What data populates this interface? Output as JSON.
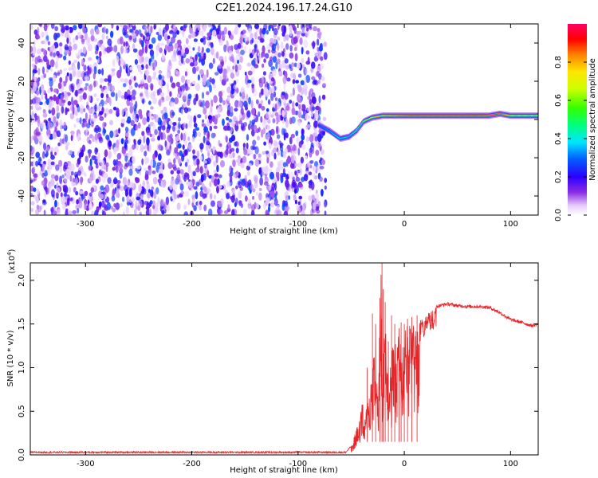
{
  "title": "C2E1.2024.196.17.24.G10",
  "chart_data": [
    {
      "type": "heatmap",
      "xlabel": "Height of straight line (km)",
      "ylabel": "Frequency (Hz)",
      "xlim": [
        -352,
        126
      ],
      "ylim": [
        -50,
        50
      ],
      "x_ticks": [
        -300,
        -200,
        -100,
        0,
        100
      ],
      "x_tick_labels": [
        "-300",
        "-200",
        "-100",
        "0",
        "100"
      ],
      "y_ticks": [
        -40,
        -20,
        0,
        20,
        40
      ],
      "y_tick_labels": [
        "-40",
        "-20",
        "0",
        "20",
        "40"
      ],
      "noise_region_x": [
        -352,
        -74
      ],
      "signal_track": {
        "x": [
          -80,
          -70,
          -60,
          -52,
          -45,
          -38,
          -30,
          -20,
          -10,
          0,
          20,
          50,
          80,
          90,
          100,
          126
        ],
        "freq": [
          -3,
          -6,
          -10,
          -9,
          -6,
          -1,
          1,
          2,
          2,
          2,
          2,
          2,
          2,
          3,
          2,
          2
        ],
        "amplitude": [
          0.3,
          0.35,
          0.45,
          0.4,
          0.5,
          0.6,
          0.75,
          0.8,
          0.85,
          0.9,
          0.95,
          0.95,
          0.9,
          0.95,
          0.7,
          0.65
        ]
      },
      "colorbar": {
        "label": "Normalized spectral amplitude",
        "range": [
          0,
          1
        ],
        "ticks": [
          0.0,
          0.2,
          0.4,
          0.6,
          0.8
        ],
        "tick_labels": [
          "0.0",
          "0.2",
          "0.4",
          "0.6",
          "0.8"
        ]
      },
      "grid": false
    },
    {
      "type": "line",
      "xlabel": "Height of straight line (km)",
      "ylabel": "SNR (10 * v/v)",
      "y_multiplier_base": "(x10",
      "y_multiplier_exp": "4",
      "y_multiplier_close": ")",
      "xlim": [
        -352,
        126
      ],
      "ylim": [
        0,
        2.2
      ],
      "x_ticks": [
        -300,
        -200,
        -100,
        0,
        100
      ],
      "x_tick_labels": [
        "-300",
        "-200",
        "-100",
        "0",
        "100"
      ],
      "y_ticks": [
        0.0,
        0.5,
        1.0,
        1.5,
        2.0
      ],
      "y_tick_labels": [
        "0.0",
        "0.5",
        "1.0",
        "1.5",
        "2.0"
      ],
      "color": "#e8262a",
      "series": [
        {
          "x": [
            -352,
            -300,
            -200,
            -100,
            -55,
            -50,
            -45,
            -40,
            -35,
            -30,
            -27,
            -25,
            -22,
            -20,
            -18,
            -15,
            -12,
            -10,
            -8,
            -5,
            -2,
            0,
            5,
            10,
            20,
            30,
            40,
            50,
            60,
            70,
            80,
            90,
            100,
            110,
            120,
            126
          ],
          "y": [
            0.03,
            0.03,
            0.03,
            0.03,
            0.03,
            0.1,
            0.3,
            0.6,
            0.7,
            1.0,
            1.6,
            0.8,
            2.2,
            1.2,
            1.5,
            1.1,
            1.2,
            1.3,
            1.35,
            1.45,
            1.45,
            1.45,
            1.5,
            1.52,
            1.6,
            1.7,
            1.73,
            1.71,
            1.7,
            1.7,
            1.69,
            1.63,
            1.55,
            1.52,
            1.48,
            1.5
          ],
          "spike_tops": [
            [
              -35,
              1.0
            ],
            [
              -30,
              1.62
            ],
            [
              -27,
              1.5
            ],
            [
              -23,
              1.8
            ],
            [
              -21,
              2.2
            ],
            [
              -20,
              1.9
            ],
            [
              -18,
              1.75
            ],
            [
              -15,
              1.3
            ],
            [
              -12,
              1.6
            ],
            [
              -9,
              1.5
            ],
            [
              -5,
              1.45
            ],
            [
              -3,
              1.52
            ],
            [
              0,
              1.5
            ],
            [
              3,
              1.56
            ],
            [
              7,
              1.58
            ],
            [
              12,
              1.6
            ]
          ]
        }
      ],
      "grid": false
    }
  ]
}
